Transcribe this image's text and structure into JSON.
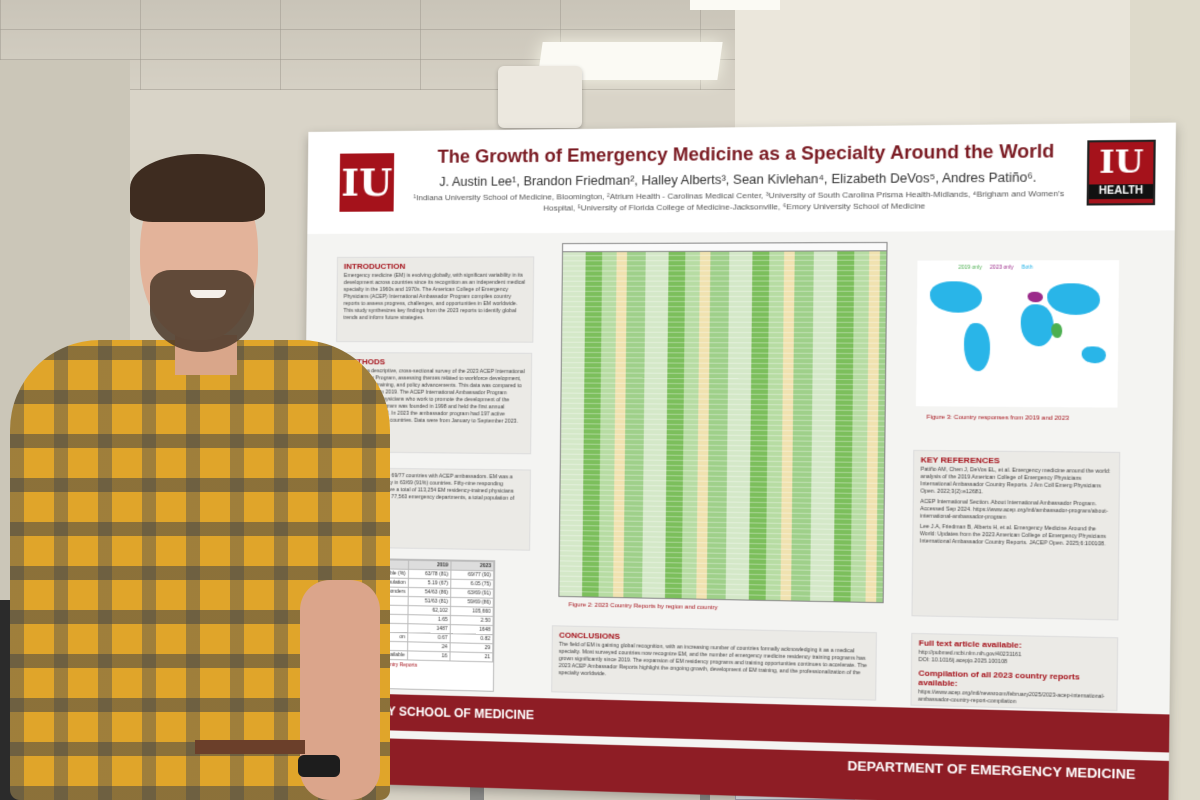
{
  "poster": {
    "title": "The Growth of Emergency Medicine as a Specialty Around the World",
    "authors": "J. Austin Lee¹, Brandon Friedman², Halley Alberts³, Sean Kivlehan⁴, Elizabeth DeVos⁵, Andres Patiño⁶.",
    "affiliations": "¹Indiana University School of Medicine, Bloomington, ²Atrium Health - Carolinas Medical Center, ³University of South Carolina Prisma Health-Midlands, ⁴Brigham and Women's Hospital, ⁵University of Florida College of Medicine-Jacksonville, ⁶Emory University School of Medicine",
    "logo_left": "IU",
    "logo_right_mark": "IU",
    "logo_right_word": "HEALTH",
    "introduction": {
      "heading": "INTRODUCTION",
      "text": "Emergency medicine (EM) is evolving globally, with significant variability in its development across countries since its recognition as an independent medical specialty in the 1960s and 1970s. The American College of Emergency Physicians (ACEP) International Ambassador Program compiles country reports to assess progress, challenges, and opportunities in EM worldwide. This study synthesizes key findings from the 2023 reports to identify global trends and inform future strategies."
    },
    "methods": {
      "heading": "METHODS",
      "text": "This was a descriptive, cross-sectional survey of the 2023 ACEP International Ambassador Program, assessing themes related to workforce development, postgraduate training, and policy advancements. This data was compared to similar work from 2019. The ACEP International Ambassador Program consists of EM physicians who work to promote the development of the specialty. The program was founded in 1998 and held the first annual conference in 2013. In 2023 the ambassador program had 197 active ambassadors to 77 countries. Data were from January to September 2023."
    },
    "results": {
      "text": "Data obtained from 69/77 countries with ACEP ambassadors. EM was a recognized specialty in 63/69 (91%) countries. Fifty-nine responding countries (86%) have a total of 113,254 EM residency-trained physicians reported working in 77,563 emergency departments, a total population of 6.05 billion."
    },
    "stats_table": {
      "headers": [
        "",
        "2019",
        "2023"
      ],
      "rows": [
        [
          "Eligible (%)",
          "63/78 (81)",
          "69/77 (90)"
        ],
        [
          "world population",
          "5.19 (67)",
          "6.05 (75)"
        ],
        [
          "Responders",
          "54/63 (86)",
          "63/69 (91)"
        ],
        [
          "",
          "51/63 (81)",
          "59/69 (86)"
        ],
        [
          "",
          "62,102",
          "105,660"
        ],
        [
          "",
          "1.65",
          "2.50"
        ],
        [
          "",
          "1487",
          "1648"
        ],
        [
          "on",
          "0.67",
          "0.82"
        ],
        [
          "",
          "24",
          "29"
        ],
        [
          "Available",
          "16",
          "21"
        ]
      ],
      "caption": "2019 and 2023 Country Reports"
    },
    "heatmap_caption": "Figure 2: 2023 Country Reports by region and country",
    "map_caption": "Figure 3: Country responses from 2019 and 2023",
    "map_legend": [
      "2019 only",
      "2023 only",
      "Both"
    ],
    "key_references": {
      "heading": "KEY REFERENCES",
      "items": [
        "Patiño AM, Chen J, DeVos EL, et al. Emergency medicine around the world: analysis of the 2019 American College of Emergency Physicians International Ambassador Country Reports. J Am Coll Emerg Physicians Open. 2022;3(2):e12681.",
        "ACEP International Section. About International Ambassador Program. Accessed Sep 2024. https://www.acep.org/intl/ambassador-program/about-international-ambassador-program",
        "Lee J.A, Friedman B, Alberts H, et al. Emergency Medicine Around the World: Updates from the 2023 American College of Emergency Physicians International Ambassador Country Reports. JACEP Open. 2025;6:100108."
      ]
    },
    "conclusions": {
      "heading": "CONCLUSIONS",
      "text": "The field of EM is gaining global recognition, with an increasing number of countries formally acknowledging it as a medical specialty. Most surveyed countries now recognize EM, and the number of emergency medicine residency training programs has grown significantly since 2019. The expansion of EM residency programs and training opportunities continues to accelerate. The 2023 ACEP Ambassador Reports highlight the ongoing growth, development of EM training, and the professionalization of the specialty worldwide."
    },
    "fulltext": {
      "heading": "Full text article available:",
      "link": "http://pubmed.ncbi.nlm.nih.gov/40231161",
      "doi": "DOI: 10.1016/j.acepjo.2025.100108"
    },
    "compilation": {
      "heading": "Compilation of all 2023 country reports available:",
      "link": "https://www.acep.org/intl/newsroom/february2025/2023-acep-international-ambassador-country-report-compilation"
    },
    "footer_left": "ERSITY SCHOOL OF MEDICINE",
    "footer_right": "DEPARTMENT OF EMERGENCY MEDICINE"
  }
}
